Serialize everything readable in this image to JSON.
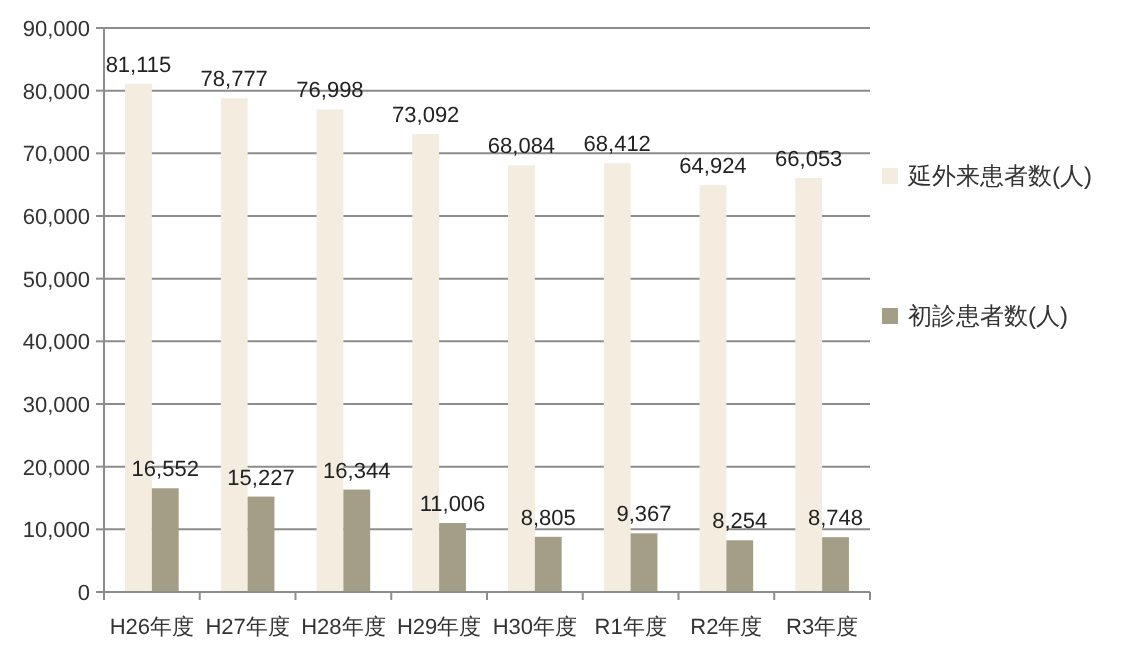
{
  "chart_data": {
    "type": "bar",
    "categories": [
      "H26年度",
      "H27年度",
      "H28年度",
      "H29年度",
      "H30年度",
      "R1年度",
      "R2年度",
      "R3年度"
    ],
    "series": [
      {
        "name": "延外来患者数(人)",
        "color": "#f3ecdf",
        "values": [
          81115,
          78777,
          76998,
          73092,
          68084,
          68412,
          64924,
          66053
        ],
        "value_labels": [
          "81,115",
          "78,777",
          "76,998",
          "73,092",
          "68,084",
          "68,412",
          "64,924",
          "66,053"
        ]
      },
      {
        "name": "初診患者数(人)",
        "color": "#a59e87",
        "values": [
          16552,
          15227,
          16344,
          11006,
          8805,
          9367,
          8254,
          8748
        ],
        "value_labels": [
          "16,552",
          "15,227",
          "16,344",
          "11,006",
          "8,805",
          "9,367",
          "8,254",
          "8,748"
        ]
      }
    ],
    "ylim": [
      0,
      90000
    ],
    "yticks": [
      0,
      {
        "value": 10000,
        "label": "10,000"
      },
      {
        "value": 20000,
        "label": "20,000"
      },
      {
        "value": 30000,
        "label": "30,000"
      },
      {
        "value": 40000,
        "label": "40,000"
      },
      {
        "value": 50000,
        "label": "50,000"
      },
      {
        "value": 60000,
        "label": "60,000"
      },
      {
        "value": 70000,
        "label": "70,000"
      },
      {
        "value": 80000,
        "label": "80,000"
      },
      {
        "value": 90000,
        "label": "90,000"
      }
    ],
    "grid": "y",
    "legend": "right"
  }
}
